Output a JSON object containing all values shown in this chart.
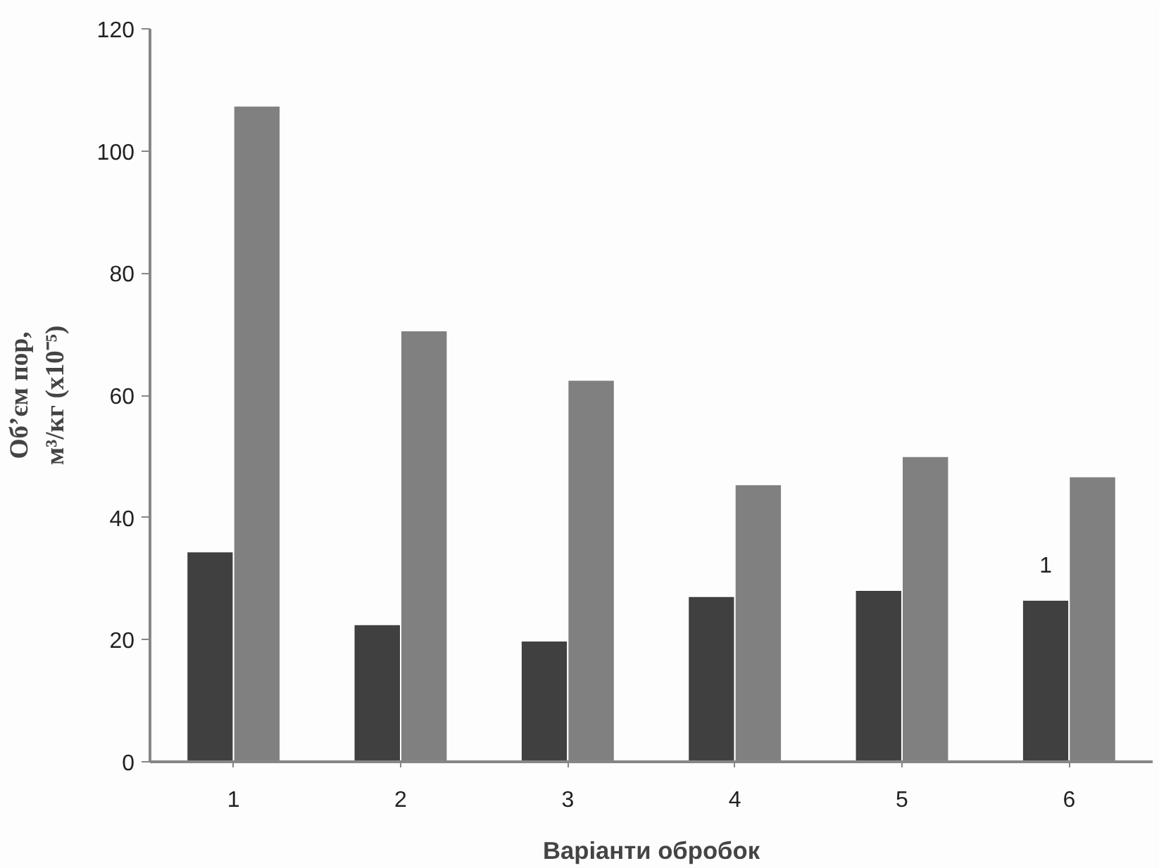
{
  "chart_data": {
    "type": "bar",
    "xlabel": "Варіанти обробок",
    "ylabel": "Об’єм пор,\nм³/кг (х10⁻⁵)",
    "categories": [
      "1",
      "2",
      "3",
      "4",
      "5",
      "6"
    ],
    "series": [
      {
        "color": "#404040",
        "values": [
          34.4,
          22.5,
          19.8,
          27.1,
          28.1,
          26.5
        ]
      },
      {
        "color": "#808080",
        "values": [
          107.4,
          70.6,
          62.5,
          45.4,
          50.0,
          46.7
        ]
      }
    ],
    "ylim": [
      0,
      120
    ],
    "yticks": [
      0,
      20,
      40,
      60,
      80,
      100,
      120
    ],
    "grid": false,
    "annotations": [
      {
        "text": "1",
        "x": "6",
        "y": 31
      }
    ]
  }
}
